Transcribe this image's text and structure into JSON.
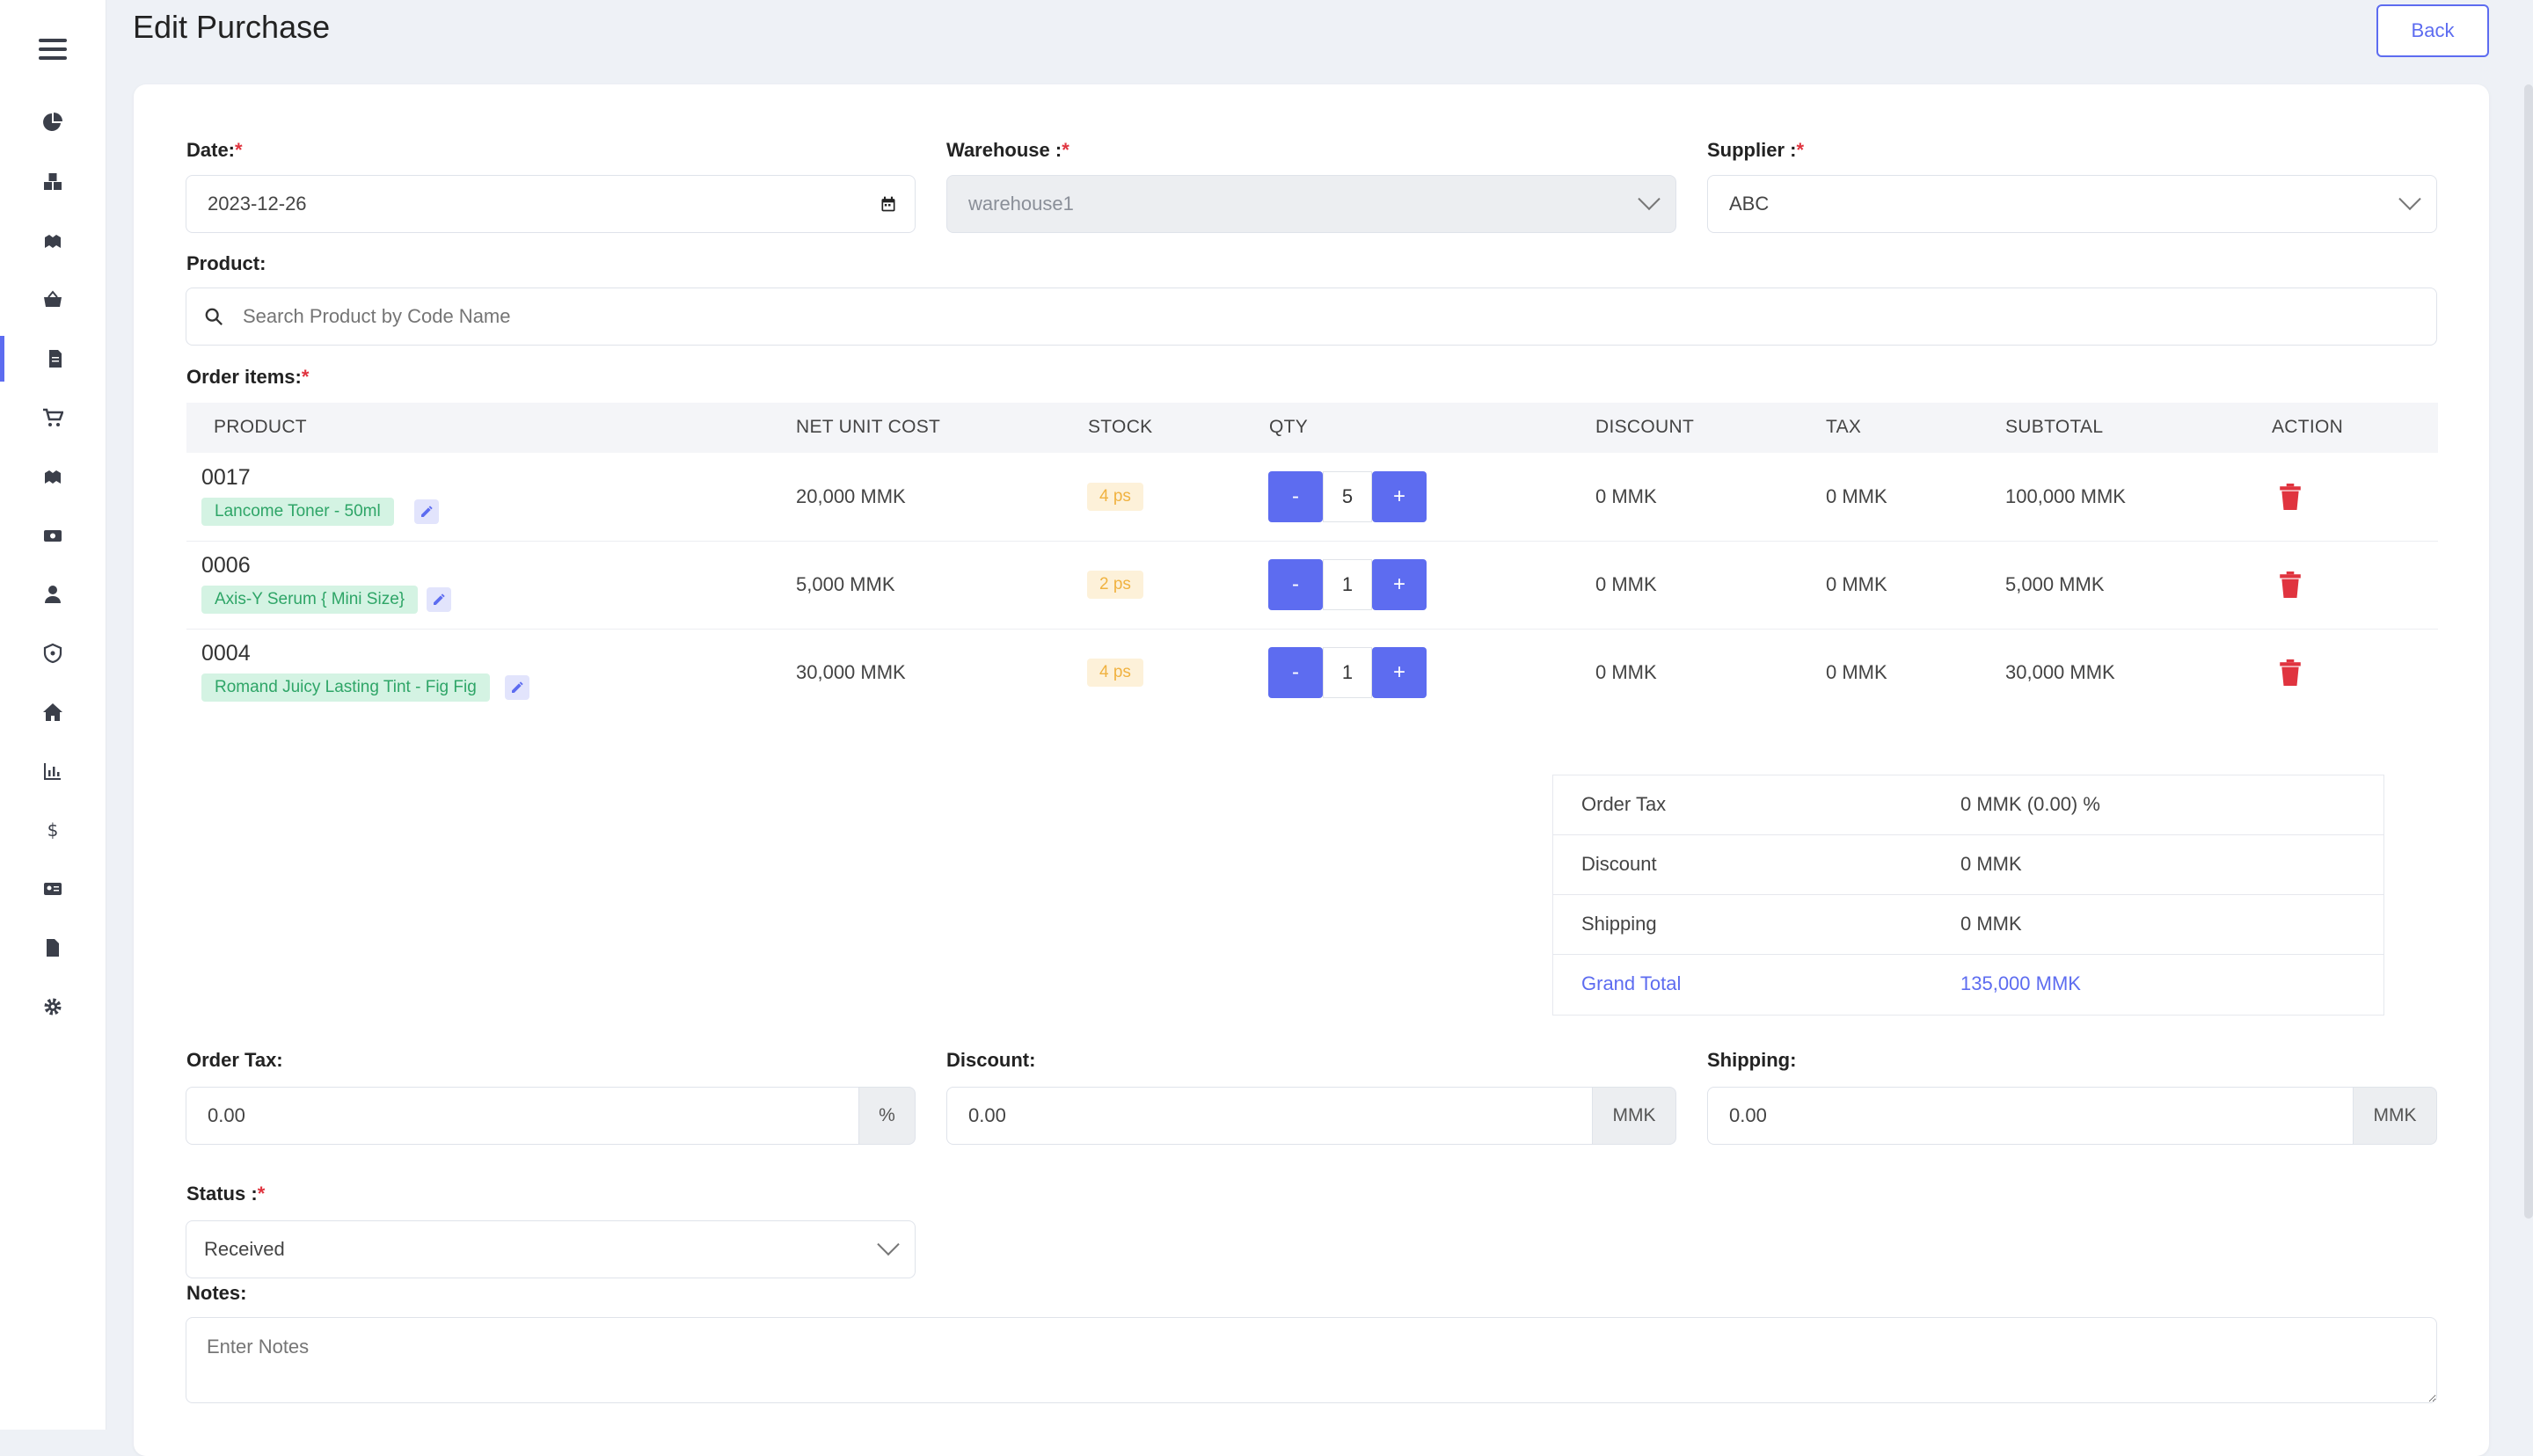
{
  "page": {
    "title": "Edit Purchase",
    "back_label": "Back"
  },
  "sidebar": {
    "items": [
      {
        "icon": "dashboard-icon"
      },
      {
        "icon": "products-icon"
      },
      {
        "icon": "adjustment-icon"
      },
      {
        "icon": "basket-icon"
      },
      {
        "icon": "purchases-icon",
        "active": true
      },
      {
        "icon": "cart-icon"
      },
      {
        "icon": "returns-icon"
      },
      {
        "icon": "expenses-icon"
      },
      {
        "icon": "people-icon"
      },
      {
        "icon": "permissions-icon"
      },
      {
        "icon": "warehouse-icon"
      },
      {
        "icon": "reports-icon"
      },
      {
        "icon": "currency-icon"
      },
      {
        "icon": "contacts-icon"
      },
      {
        "icon": "documents-icon"
      },
      {
        "icon": "settings-icon"
      }
    ]
  },
  "form": {
    "date_label": "Date:",
    "date_value": "2023-12-26",
    "warehouse_label": "Warehouse :",
    "warehouse_value": "warehouse1",
    "supplier_label": "Supplier :",
    "supplier_value": "ABC",
    "product_label": "Product:",
    "product_placeholder": "Search Product by Code Name",
    "order_items_label": "Order items:",
    "required_mark": "*"
  },
  "table": {
    "headers": [
      "PRODUCT",
      "NET UNIT COST",
      "STOCK",
      "QTY",
      "DISCOUNT",
      "TAX",
      "SUBTOTAL",
      "ACTION"
    ],
    "rows": [
      {
        "code": "0017",
        "name": "Lancome Toner - 50ml",
        "net_unit_cost": "20,000 MMK",
        "stock": "4 ps",
        "qty": "5",
        "discount": "0 MMK",
        "tax": "0 MMK",
        "subtotal": "100,000 MMK"
      },
      {
        "code": "0006",
        "name": "Axis-Y Serum { Mini Size}",
        "net_unit_cost": "5,000 MMK",
        "stock": "2 ps",
        "qty": "1",
        "discount": "0 MMK",
        "tax": "0 MMK",
        "subtotal": "5,000 MMK"
      },
      {
        "code": "0004",
        "name": "Romand Juicy Lasting Tint - Fig Fig",
        "net_unit_cost": "30,000 MMK",
        "stock": "4 ps",
        "qty": "1",
        "discount": "0 MMK",
        "tax": "0 MMK",
        "subtotal": "30,000 MMK"
      }
    ],
    "minus_label": "-",
    "plus_label": "+"
  },
  "summary": {
    "order_tax_label": "Order Tax",
    "order_tax_value": "0 MMK (0.00) %",
    "discount_label": "Discount",
    "discount_value": "0 MMK",
    "shipping_label": "Shipping",
    "shipping_value": "0 MMK",
    "grand_total_label": "Grand Total",
    "grand_total_value": "135,000 MMK"
  },
  "inputs": {
    "order_tax_label": "Order Tax:",
    "order_tax_value": "0.00",
    "order_tax_unit": "%",
    "discount_label": "Discount:",
    "discount_value": "0.00",
    "discount_unit": "MMK",
    "shipping_label": "Shipping:",
    "shipping_value": "0.00",
    "shipping_unit": "MMK",
    "status_label": "Status :",
    "status_value": "Received",
    "notes_label": "Notes:",
    "notes_placeholder": "Enter Notes"
  },
  "colors": {
    "accent": "#5d6cf0",
    "danger": "#e0343f",
    "success_bg": "#d4f3e3",
    "warning_bg": "#fdf1d9"
  }
}
